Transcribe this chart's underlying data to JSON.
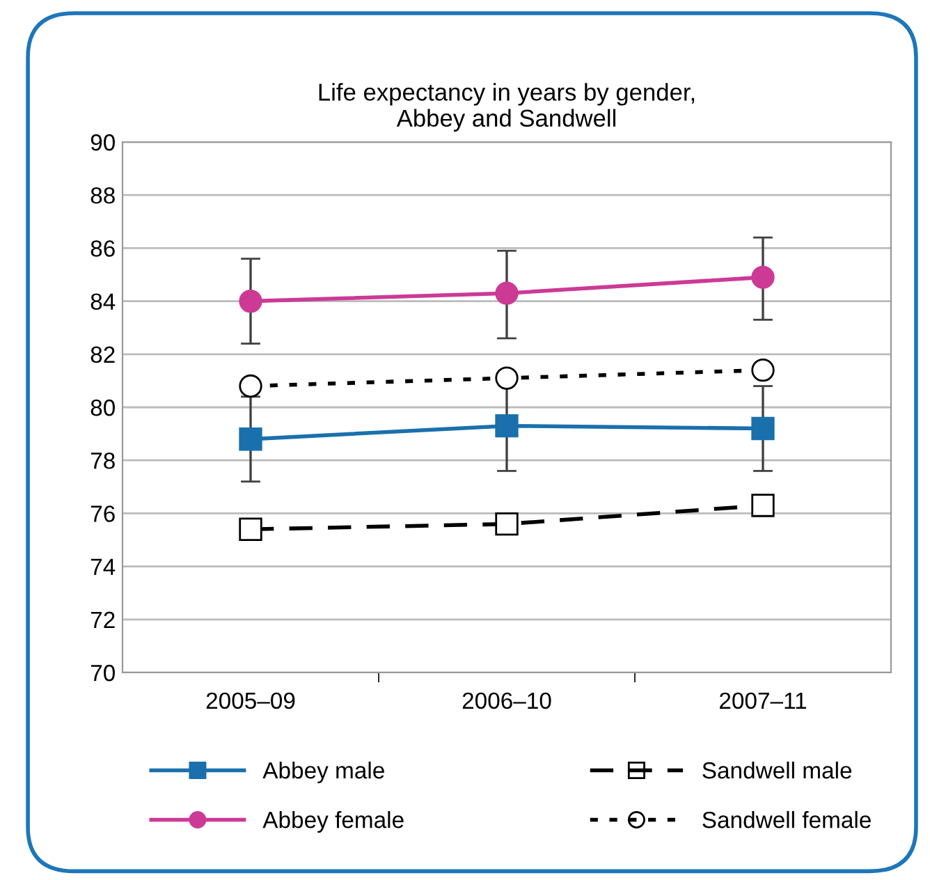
{
  "chart_data": {
    "type": "line",
    "title": "Life expectancy in years by gender,\nAbbey and Sandwell",
    "categories": [
      "2005–09",
      "2006–10",
      "2007–11"
    ],
    "series": [
      {
        "name": "Abbey male",
        "color": "#1a70ad",
        "marker": "square",
        "line_style": "solid",
        "values": [
          78.8,
          79.3,
          79.2
        ],
        "errors": [
          1.6,
          1.7,
          1.6
        ]
      },
      {
        "name": "Sandwell male",
        "color": "#000000",
        "marker": "square",
        "line_style": "dashed",
        "values": [
          75.4,
          75.6,
          76.3
        ]
      },
      {
        "name": "Abbey female",
        "color": "#cc3a96",
        "marker": "circle",
        "line_style": "solid",
        "values": [
          84.0,
          84.3,
          84.9
        ],
        "errors": [
          [
            82.4,
            85.6
          ],
          [
            82.6,
            85.9
          ],
          [
            83.3,
            86.4
          ]
        ]
      },
      {
        "name": "Sandwell female",
        "color": "#000000",
        "marker": "circle",
        "line_style": "dotted",
        "values": [
          80.8,
          81.1,
          81.4
        ]
      }
    ],
    "ylim": [
      70,
      90
    ],
    "yticks": [
      70,
      72,
      74,
      76,
      78,
      80,
      82,
      84,
      86,
      88,
      90
    ],
    "grid": "y",
    "legend": "bottom"
  }
}
